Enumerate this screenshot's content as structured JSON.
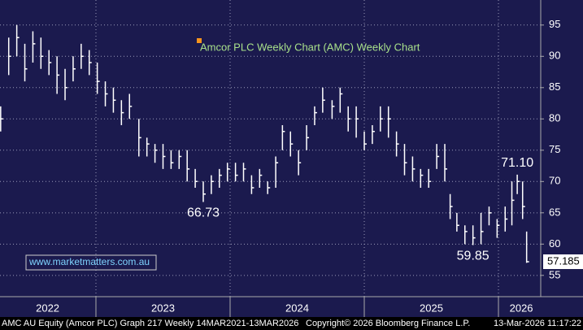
{
  "chart_data": {
    "type": "ohlc",
    "title": "Amcor PLC Weekly Chart (AMC) Weekly Chart",
    "color": "#ffffff",
    "background": "#1b1a4e",
    "x": [
      2022.29,
      2022.35,
      2022.41,
      2022.47,
      2022.53,
      2022.59,
      2022.65,
      2022.71,
      2022.77,
      2022.83,
      2022.89,
      2022.95,
      2023.01,
      2023.07,
      2023.13,
      2023.19,
      2023.25,
      2023.32,
      2023.38,
      2023.44,
      2023.5,
      2023.56,
      2023.62,
      2023.68,
      2023.74,
      2023.8,
      2023.86,
      2023.92,
      2023.98,
      2024.04,
      2024.1,
      2024.16,
      2024.22,
      2024.28,
      2024.34,
      2024.39,
      2024.45,
      2024.51,
      2024.57,
      2024.63,
      2024.69,
      2024.76,
      2024.82,
      2024.88,
      2024.94,
      2025.0,
      2025.06,
      2025.12,
      2025.18,
      2025.24,
      2025.3,
      2025.36,
      2025.42,
      2025.48,
      2025.54,
      2025.6,
      2025.64,
      2025.69,
      2025.75,
      2025.81,
      2025.87,
      2025.93,
      2025.99,
      2026.05,
      2026.1,
      2026.14,
      2026.18,
      2026.21
    ],
    "high": [
      82,
      93,
      95,
      92,
      94,
      93,
      91,
      90,
      88,
      90,
      92,
      91,
      89,
      86,
      85,
      83,
      84,
      80,
      77,
      76,
      76,
      75,
      75,
      75,
      72,
      70,
      71,
      72,
      73,
      73,
      73,
      71,
      72,
      70,
      74,
      79,
      78,
      75,
      79,
      82,
      85,
      83,
      85,
      82,
      82,
      78,
      79,
      82,
      82,
      78,
      76,
      74,
      72,
      72,
      76,
      76,
      68,
      65,
      63,
      63,
      65,
      66,
      64,
      66,
      70,
      71.1,
      70,
      62
    ],
    "low": [
      78,
      87,
      90,
      86,
      89,
      88,
      87,
      84,
      83,
      86,
      88,
      87,
      84,
      82,
      81,
      79,
      80,
      74,
      74,
      73,
      72,
      72,
      72,
      70,
      69,
      66.73,
      68,
      69,
      70,
      70,
      70,
      68,
      69,
      68,
      69,
      75,
      74,
      71,
      75,
      79,
      81,
      80,
      81,
      78,
      77,
      75,
      76,
      78,
      77,
      74,
      71,
      70,
      69,
      69,
      72,
      70,
      64,
      62,
      60,
      59.85,
      60,
      63,
      61,
      62,
      63,
      68,
      64,
      57
    ],
    "close": [
      80,
      90,
      93,
      88,
      92,
      90,
      89,
      87,
      85,
      88,
      90,
      89,
      86,
      84,
      83,
      81,
      82,
      77,
      76,
      75,
      74,
      73,
      74,
      72,
      70,
      68,
      70,
      71,
      72,
      71,
      72,
      69,
      71,
      69,
      73,
      78,
      76,
      73,
      77,
      81,
      83,
      82,
      84,
      80,
      80,
      76,
      78,
      80,
      80,
      76,
      73,
      72,
      71,
      70,
      74,
      72,
      66,
      63,
      62,
      61,
      62,
      65,
      63,
      64,
      67,
      70,
      66,
      57.185
    ],
    "xlim": [
      2022.285,
      2026.315
    ],
    "ylim": [
      51.6,
      99
    ],
    "yticks": [
      55,
      60,
      65,
      70,
      75,
      80,
      85,
      90,
      95
    ],
    "grid": true,
    "xticks": [
      {
        "value": 2022.64,
        "label": "2022"
      },
      {
        "value": 2023.5,
        "label": "2023"
      },
      {
        "value": 2024.5,
        "label": "2024"
      },
      {
        "value": 2025.5,
        "label": "2025"
      },
      {
        "value": 2026.17,
        "label": "2026"
      }
    ],
    "xgrid": [
      2023,
      2024,
      2025,
      2026
    ],
    "annotations": [
      {
        "x": 2023.8,
        "value": 66.73,
        "label": "66.73",
        "position": "below"
      },
      {
        "x": 2026.14,
        "value": 71.1,
        "label": "71.10",
        "position": "above"
      },
      {
        "x": 2025.81,
        "value": 59.85,
        "label": "59.85",
        "position": "below"
      }
    ],
    "last_price": 57.185,
    "watermark": "www.marketmatters.com.au"
  },
  "footer": {
    "left": "AMC AU Equity (Amcor PLC) Graph 217 Weekly 14MAR2021-13MAR2026",
    "center": "Copyright© 2026 Bloomberg Finance L.P.",
    "right": "13-Mar-2026 11:17:22"
  }
}
